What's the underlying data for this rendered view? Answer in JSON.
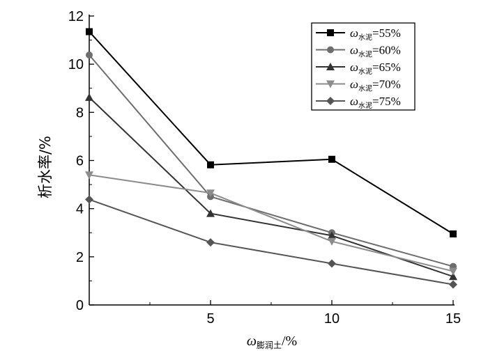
{
  "chart_data": {
    "type": "line",
    "title": "",
    "xlabel": {
      "symbol": "ω",
      "sub": "膨润土",
      "unit": "/%"
    },
    "ylabel": "析水率/%",
    "xlim": [
      0,
      15
    ],
    "ylim": [
      0,
      12
    ],
    "x_ticks": [
      5,
      10,
      15
    ],
    "y_ticks": [
      0,
      2,
      4,
      6,
      8,
      10,
      12
    ],
    "grid": false,
    "legend_position": "top-right",
    "x": [
      0,
      5,
      10,
      15
    ],
    "series": [
      {
        "name": "=55%",
        "symbol": "ω",
        "sub": "水泥",
        "marker": "square",
        "color": "#000000",
        "values": [
          11.35,
          5.82,
          6.05,
          2.95
        ]
      },
      {
        "name": "=60%",
        "symbol": "ω",
        "sub": "水泥",
        "marker": "circle",
        "color": "#6e6e6e",
        "values": [
          10.38,
          4.5,
          3.0,
          1.6
        ]
      },
      {
        "name": "=65%",
        "symbol": "ω",
        "sub": "水泥",
        "marker": "triangle-up",
        "color": "#333333",
        "values": [
          8.62,
          3.8,
          2.88,
          1.18
        ]
      },
      {
        "name": "=70%",
        "symbol": "ω",
        "sub": "水泥",
        "marker": "triangle-down",
        "color": "#8c8c8c",
        "values": [
          5.4,
          4.65,
          2.64,
          1.4
        ]
      },
      {
        "name": "=75%",
        "symbol": "ω",
        "sub": "水泥",
        "marker": "diamond",
        "color": "#555555",
        "values": [
          4.38,
          2.6,
          1.72,
          0.85
        ]
      }
    ]
  }
}
